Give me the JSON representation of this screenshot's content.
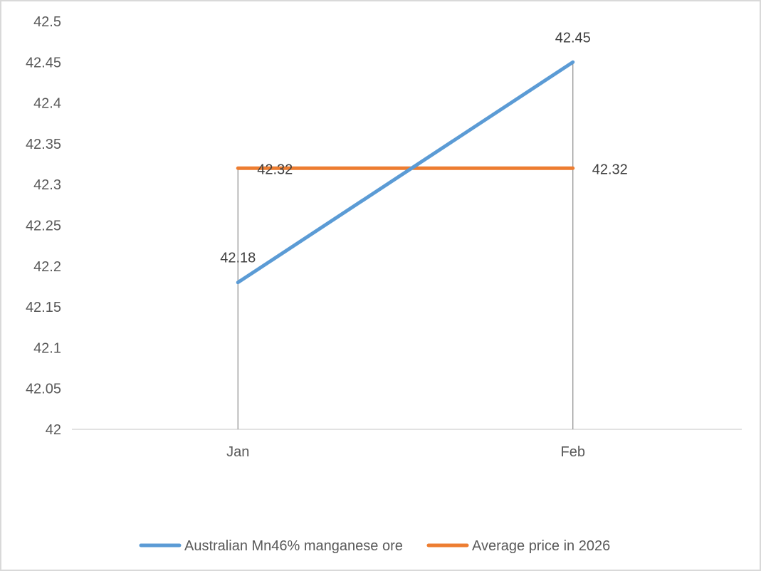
{
  "chart_data": {
    "type": "line",
    "title": "",
    "xlabel": "",
    "ylabel": "",
    "categories": [
      "Jan",
      "Feb"
    ],
    "ylim": [
      42,
      42.5
    ],
    "ytick_step": 0.05,
    "yticks": [
      "42",
      "42.05",
      "42.1",
      "42.15",
      "42.2",
      "42.25",
      "42.3",
      "42.35",
      "42.4",
      "42.45",
      "42.5"
    ],
    "grid": false,
    "drop_lines": true,
    "legend_position": "bottom",
    "series": [
      {
        "name": "Australian Mn46% manganese ore",
        "values": [
          42.18,
          42.45
        ],
        "labels": [
          "42.18",
          "42.45"
        ],
        "color": "#5b9bd5"
      },
      {
        "name": "Average price in 2026",
        "values": [
          42.32,
          42.32
        ],
        "labels": [
          "42.32",
          "42.32"
        ],
        "color": "#ed7d31"
      }
    ]
  }
}
